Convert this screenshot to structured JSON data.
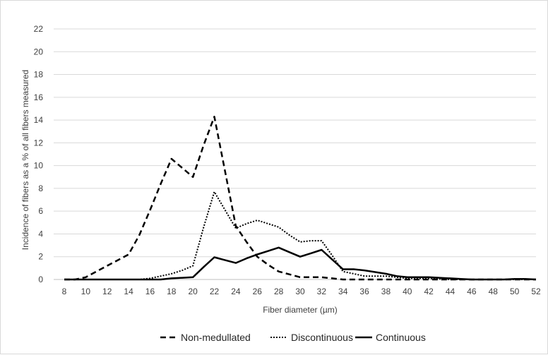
{
  "chart_data": {
    "type": "line",
    "xlabel": "Fiber diameter (µm)",
    "ylabel": "Incidence of fibers as a % of all fibers measured",
    "x": [
      8,
      9,
      10,
      11,
      12,
      13,
      14,
      15,
      16,
      17,
      18,
      19,
      20,
      21,
      22,
      23,
      24,
      25,
      26,
      27,
      28,
      29,
      30,
      31,
      32,
      33,
      34,
      35,
      36,
      37,
      38,
      39,
      40,
      41,
      42,
      43,
      44,
      45,
      46,
      47,
      48,
      49,
      50,
      51,
      52
    ],
    "x_ticks": [
      8,
      10,
      12,
      14,
      16,
      18,
      20,
      22,
      24,
      26,
      28,
      30,
      32,
      34,
      36,
      38,
      40,
      42,
      44,
      46,
      48,
      50,
      52
    ],
    "y_ticks": [
      0,
      2,
      4,
      6,
      8,
      10,
      12,
      14,
      16,
      18,
      20,
      22
    ],
    "xlim": [
      8,
      52
    ],
    "ylim": [
      0,
      22
    ],
    "grid": "horizontal",
    "legend_position": "bottom",
    "series": [
      {
        "name": "Non-medullated",
        "style": "dashed",
        "color": "#000000",
        "values": [
          0,
          0,
          0.2,
          0.7,
          1.2,
          1.7,
          2.2,
          3.9,
          6.1,
          8.4,
          10.6,
          9.8,
          9.0,
          11.8,
          14.3,
          9.5,
          4.7,
          3.3,
          2.0,
          1.3,
          0.7,
          0.45,
          0.2,
          0.2,
          0.2,
          0.1,
          0,
          0,
          0,
          0,
          0,
          0,
          0,
          0,
          0,
          0,
          0,
          0,
          0,
          0,
          0,
          0,
          0,
          0,
          0
        ]
      },
      {
        "name": "Discontinuous",
        "style": "dotted",
        "color": "#000000",
        "values": [
          0,
          0,
          0,
          0,
          0,
          0,
          0,
          0,
          0.1,
          0.3,
          0.5,
          0.8,
          1.2,
          4.6,
          7.7,
          6.1,
          4.5,
          4.9,
          5.2,
          4.9,
          4.6,
          3.9,
          3.3,
          3.4,
          3.4,
          2.1,
          0.7,
          0.5,
          0.3,
          0.3,
          0.3,
          0.2,
          0.1,
          0.1,
          0.1,
          0.05,
          0,
          0,
          0,
          0,
          0,
          0,
          0,
          0,
          0
        ]
      },
      {
        "name": "Continuous",
        "style": "solid",
        "color": "#000000",
        "values": [
          0,
          0,
          0,
          0,
          0,
          0,
          0,
          0,
          0,
          0,
          0.1,
          0.15,
          0.2,
          1.1,
          1.95,
          1.7,
          1.45,
          1.85,
          2.2,
          2.5,
          2.8,
          2.4,
          2.0,
          2.3,
          2.6,
          1.75,
          0.9,
          0.9,
          0.8,
          0.65,
          0.5,
          0.3,
          0.2,
          0.2,
          0.2,
          0.15,
          0.1,
          0.05,
          0,
          0,
          0,
          0,
          0.05,
          0.05,
          0
        ]
      }
    ]
  }
}
